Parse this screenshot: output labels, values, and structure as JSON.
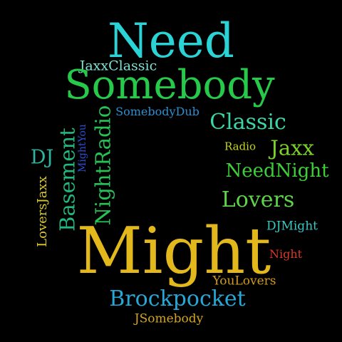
{
  "background": "#000000",
  "words": [
    {
      "id": "need",
      "text": "Need",
      "color": "#2ad4d6"
    },
    {
      "id": "jaxxclassic",
      "text": "JaxxClassic",
      "color": "#7fe2d4"
    },
    {
      "id": "somebody",
      "text": "Somebody",
      "color": "#26c94a"
    },
    {
      "id": "somebodydub",
      "text": "SomebodyDub",
      "color": "#2e8fcf"
    },
    {
      "id": "classic",
      "text": "Classic",
      "color": "#3ad6a6"
    },
    {
      "id": "nightradio",
      "text": "NightRadio",
      "color": "#27c255"
    },
    {
      "id": "mightyou",
      "text": "MightYou",
      "color": "#2f4ed0"
    },
    {
      "id": "basement",
      "text": "Basement",
      "color": "#21b880"
    },
    {
      "id": "dj",
      "text": "DJ",
      "color": "#2ab6a0"
    },
    {
      "id": "radio",
      "text": "Radio",
      "color": "#c4d31e"
    },
    {
      "id": "jaxx",
      "text": "Jaxx",
      "color": "#7ad228"
    },
    {
      "id": "needninght",
      "text": "NeedNight",
      "color": "#3fce3a"
    },
    {
      "id": "lovers",
      "text": "Lovers",
      "color": "#5fd44a"
    },
    {
      "id": "loversjaxx",
      "text": "LoversJaxx",
      "color": "#d9c72a"
    },
    {
      "id": "dimight",
      "text": "DJMight",
      "color": "#3ac6c0"
    },
    {
      "id": "might",
      "text": "Might",
      "color": "#e3b81d"
    },
    {
      "id": "night",
      "text": "Night",
      "color": "#d6392a"
    },
    {
      "id": "youlovers",
      "text": "YouLovers",
      "color": "#cf9a1f"
    },
    {
      "id": "brockpocket",
      "text": "Brockpocket",
      "color": "#27a7d6"
    },
    {
      "id": "jsomebody",
      "text": "JSomebody",
      "color": "#d4a520"
    }
  ]
}
